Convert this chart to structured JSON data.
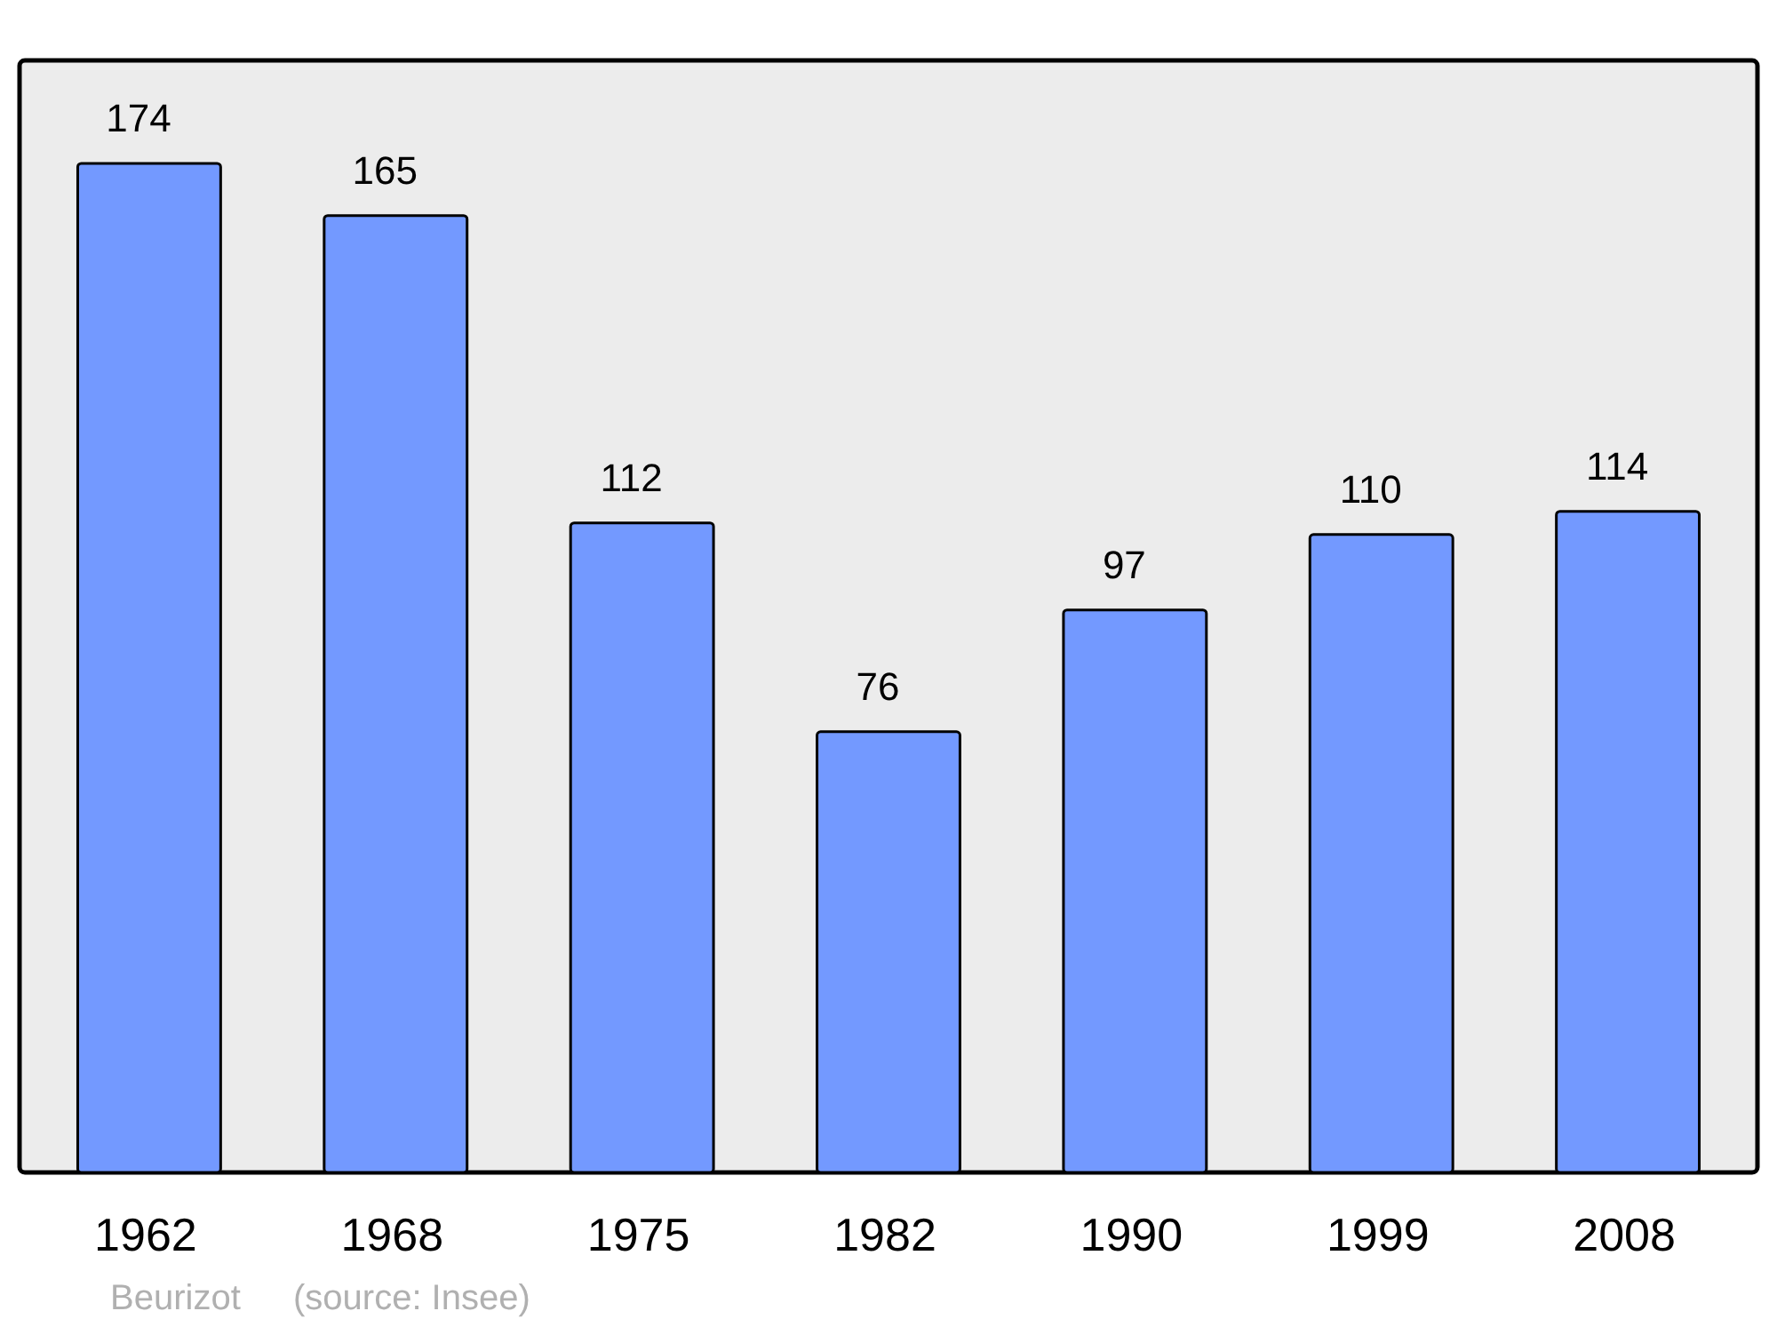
{
  "chart_data": {
    "type": "bar",
    "categories": [
      "1962",
      "1968",
      "1975",
      "1982",
      "1990",
      "1999",
      "2008"
    ],
    "values": [
      174,
      165,
      112,
      76,
      97,
      110,
      114
    ],
    "color": "#7399ff",
    "data_labels": true,
    "annotations": [
      "Beurizot",
      "(source: Insee)"
    ]
  }
}
